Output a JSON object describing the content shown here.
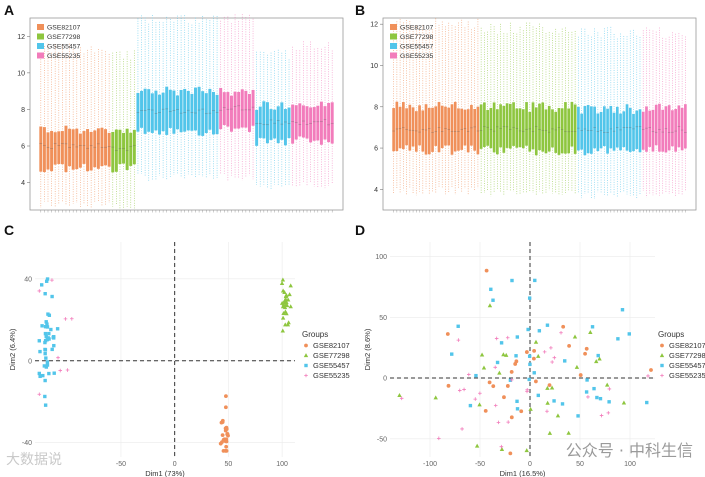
{
  "watermarks": {
    "right": "公众号 · 中科生信",
    "left": "大数据说"
  },
  "colors": {
    "GSE82107": "#f0905a",
    "GSE77298": "#8ec63f",
    "GSE55457": "#52c5ea",
    "GSE55235": "#f27cbb"
  },
  "chart_data": [
    {
      "panel": "A",
      "type": "box",
      "ylim": [
        2.5,
        13
      ],
      "yticks": [
        4,
        6,
        8,
        10,
        12
      ],
      "legend": [
        "GSE82107",
        "GSE77298",
        "GSE55457",
        "GSE55235"
      ],
      "groups": [
        {
          "name": "GSE82107",
          "n": 20,
          "median": 6.0,
          "q1": 4.8,
          "q3": 6.9,
          "wlo": 2.8,
          "whi": 11.3
        },
        {
          "name": "GSE77298",
          "n": 7,
          "median": 5.9,
          "q1": 4.8,
          "q3": 6.8,
          "wlo": 2.7,
          "whi": 11.0
        },
        {
          "name": "GSE55457",
          "n": 23,
          "median": 7.9,
          "q1": 6.8,
          "q3": 9.0,
          "wlo": 4.3,
          "whi": 12.9
        },
        {
          "name": "GSE55235",
          "n": 10,
          "median": 8.1,
          "q1": 7.0,
          "q3": 9.0,
          "wlo": 4.3,
          "whi": 13.0
        },
        {
          "name": "GSE55457",
          "n": 10,
          "median": 7.3,
          "q1": 6.2,
          "q3": 8.2,
          "wlo": 3.8,
          "whi": 11.0
        },
        {
          "name": "GSE55235",
          "n": 12,
          "median": 7.3,
          "q1": 6.3,
          "q3": 8.3,
          "wlo": 3.8,
          "whi": 11.5
        }
      ]
    },
    {
      "panel": "B",
      "type": "box",
      "ylim": [
        3,
        12.3
      ],
      "yticks": [
        4,
        6,
        8,
        10,
        12
      ],
      "legend": [
        "GSE82107",
        "GSE77298",
        "GSE55457",
        "GSE55235"
      ],
      "groups": [
        {
          "name": "GSE82107",
          "n": 27,
          "median": 6.9,
          "q1": 5.9,
          "q3": 8.0,
          "wlo": 3.9,
          "whi": 12.0
        },
        {
          "name": "GSE77298",
          "n": 30,
          "median": 6.9,
          "q1": 5.9,
          "q3": 8.0,
          "wlo": 3.8,
          "whi": 11.8
        },
        {
          "name": "GSE55457",
          "n": 20,
          "median": 6.9,
          "q1": 5.9,
          "q3": 7.9,
          "wlo": 3.7,
          "whi": 11.6
        },
        {
          "name": "GSE55235",
          "n": 14,
          "median": 6.9,
          "q1": 5.9,
          "q3": 7.9,
          "wlo": 3.8,
          "whi": 11.6
        }
      ]
    },
    {
      "panel": "C",
      "type": "scatter",
      "xlabel": "Dim1 (73%)",
      "ylabel": "Dim2 (6.4%)",
      "xlim": [
        -130,
        112
      ],
      "ylim": [
        -47,
        58
      ],
      "xticks": [
        -50,
        0,
        50,
        100
      ],
      "yticks": [
        -40,
        0,
        40
      ],
      "legend_title": "Groups",
      "legend": [
        "GSE82107",
        "GSE77298",
        "GSE55457",
        "GSE55235"
      ],
      "clusters": [
        {
          "name": "GSE82107",
          "cx": 47,
          "cy": -34,
          "sx": 2,
          "sy": 7,
          "n": 25
        },
        {
          "name": "GSE77298",
          "cx": 103,
          "cy": 29,
          "sx": 2,
          "sy": 6,
          "n": 30
        },
        {
          "name": "GSE55457",
          "cx": -118,
          "cy": 10,
          "sx": 4,
          "sy": 18,
          "n": 45
        },
        {
          "name": "GSE55235",
          "cx": -110,
          "cy": 5,
          "sx": 15,
          "sy": 20,
          "n": 8
        }
      ]
    },
    {
      "panel": "D",
      "type": "scatter",
      "xlabel": "Dim1 (16.5%)",
      "ylabel": "Dim2 (8.6%)",
      "xlim": [
        -140,
        125
      ],
      "ylim": [
        -65,
        112
      ],
      "xticks": [
        -100,
        -50,
        0,
        50,
        100
      ],
      "yticks": [
        -50,
        0,
        50,
        100
      ],
      "legend_title": "Groups",
      "legend": [
        "GSE82107",
        "GSE77298",
        "GSE55457",
        "GSE55235"
      ],
      "clusters": [
        {
          "name": "GSE82107",
          "cx": 0,
          "cy": -5,
          "sx": 45,
          "sy": 30,
          "n": 25
        },
        {
          "name": "GSE77298",
          "cx": 5,
          "cy": 0,
          "sx": 40,
          "sy": 30,
          "n": 28
        },
        {
          "name": "GSE55457",
          "cx": 5,
          "cy": 5,
          "sx": 55,
          "sy": 35,
          "n": 40
        },
        {
          "name": "GSE55235",
          "cx": 0,
          "cy": 0,
          "sx": 50,
          "sy": 30,
          "n": 30
        }
      ]
    }
  ]
}
